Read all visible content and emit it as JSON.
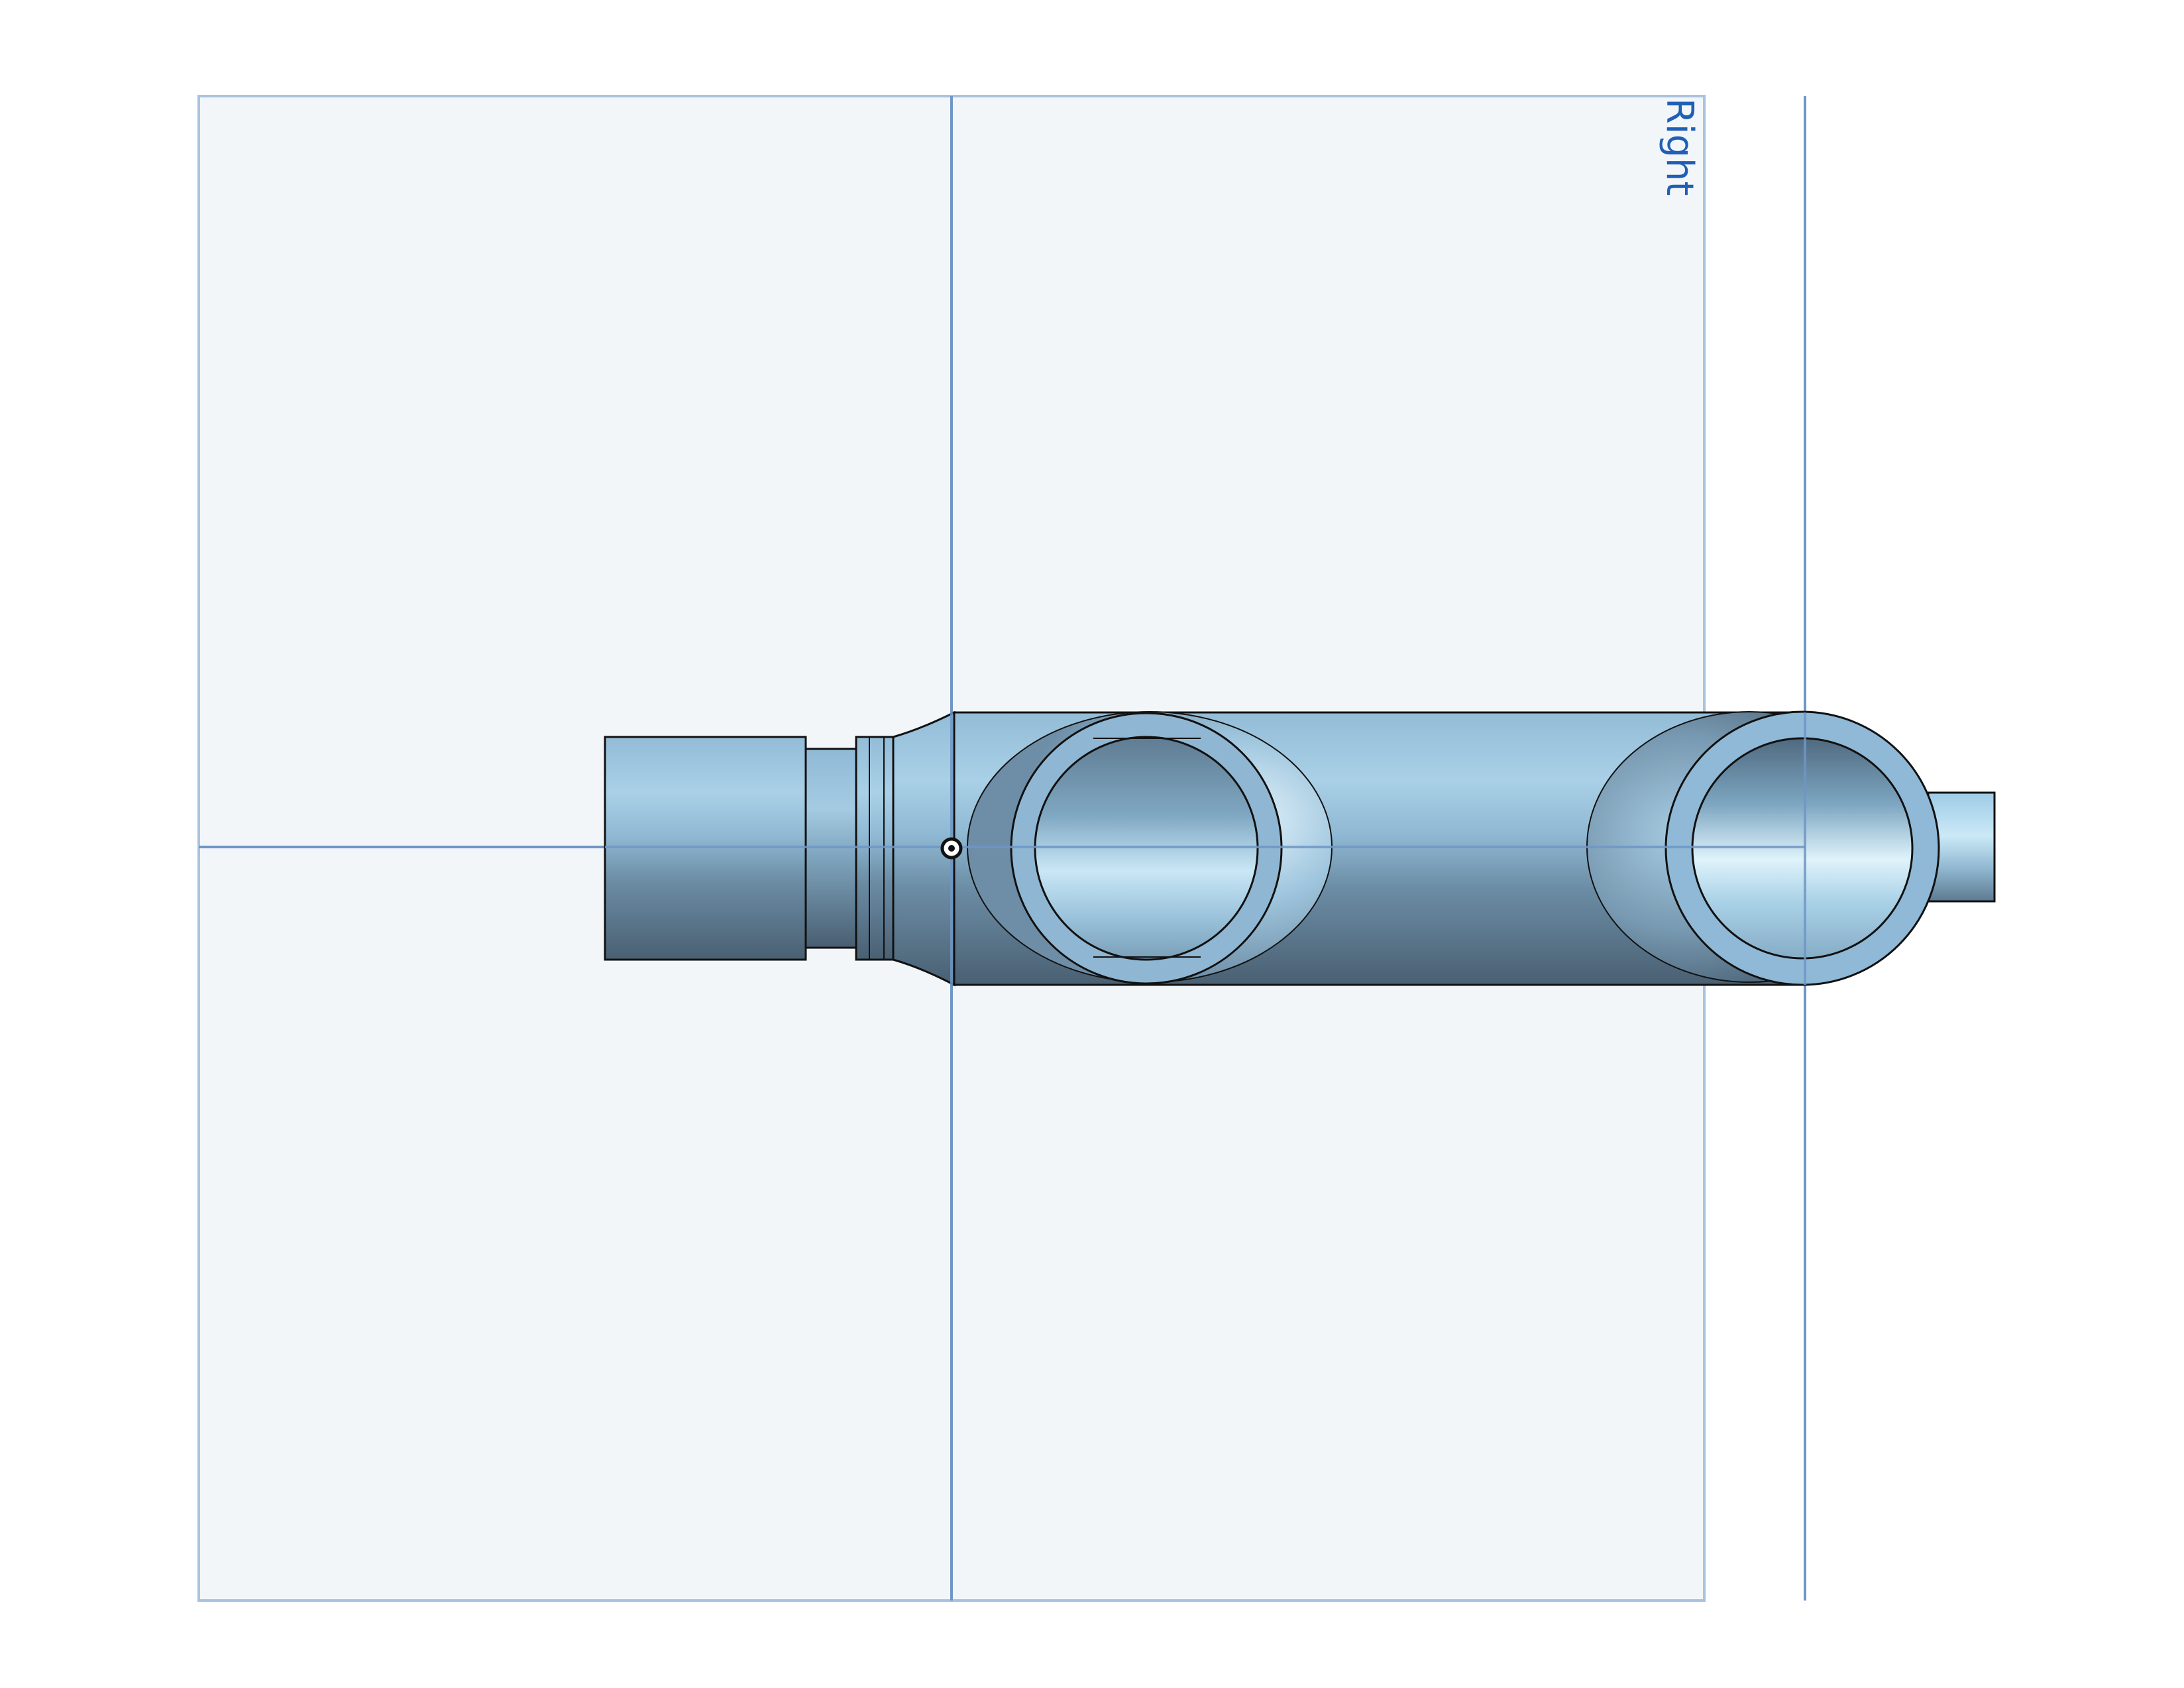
{
  "viewport": {
    "right_plane_label": "Right"
  },
  "colors": {
    "plane_fill": "#f3f6f9",
    "plane_edge": "#a9c3df",
    "plane_axis": "#6f97c6",
    "body_light": "#b8dbee",
    "body_mid": "#8cb6d2",
    "body_dark": "#4a6073",
    "edge_line": "#111111",
    "label": "#1f5fb5"
  }
}
